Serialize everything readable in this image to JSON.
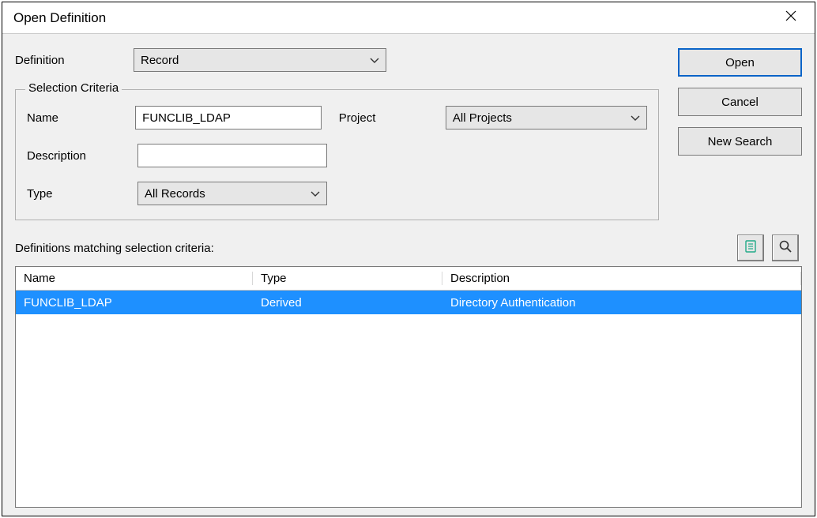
{
  "window": {
    "title": "Open Definition"
  },
  "definition": {
    "label": "Definition",
    "value": "Record"
  },
  "criteria": {
    "legend": "Selection Criteria",
    "name_label": "Name",
    "name_value": "FUNCLIB_LDAP",
    "project_label": "Project",
    "project_value": "All Projects",
    "description_label": "Description",
    "description_value": "",
    "type_label": "Type",
    "type_value": "All Records"
  },
  "buttons": {
    "open": "Open",
    "cancel": "Cancel",
    "new_search": "New Search"
  },
  "results": {
    "matching_label": "Definitions matching selection criteria:",
    "columns": {
      "name": "Name",
      "type": "Type",
      "description": "Description"
    },
    "rows": [
      {
        "name": "FUNCLIB_LDAP",
        "type": "Derived",
        "description": "Directory Authentication",
        "selected": true
      }
    ]
  },
  "colors": {
    "dialog_bg": "#f0f0f0",
    "combo_bg": "#e6e6e6",
    "border": "#7a7a7a",
    "selection_bg": "#1e90ff",
    "selection_fg": "#ffffff",
    "primary_border": "#0a64c8"
  }
}
